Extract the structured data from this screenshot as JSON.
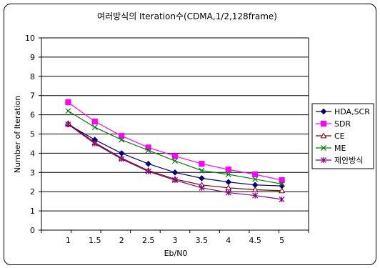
{
  "chart_data": {
    "type": "line",
    "title": "여러방식의 Iteration수(CDMA,1/2,128frame)",
    "xlabel": "Eb/N0",
    "ylabel": "Number of Iteration",
    "x": [
      1,
      1.5,
      2,
      2.5,
      3,
      3.5,
      4,
      4.5,
      5
    ],
    "x_tick_labels": [
      "1",
      "1.5",
      "2",
      "2.5",
      "3",
      "3.5",
      "4",
      "4.5",
      "5"
    ],
    "ylim": [
      0,
      10
    ],
    "y_tick_labels": [
      "0",
      "1",
      "2",
      "3",
      "4",
      "5",
      "6",
      "7",
      "8",
      "9",
      "10"
    ],
    "grid": "horizontal",
    "legend": "right",
    "series": [
      {
        "name": "HDA,SCR",
        "color": "#000080",
        "marker": "diamond",
        "values": [
          5.5,
          4.7,
          4.0,
          3.45,
          3.0,
          2.7,
          2.5,
          2.35,
          2.3
        ]
      },
      {
        "name": "SDR",
        "color": "#ff00ff",
        "marker": "square",
        "values": [
          6.65,
          5.65,
          4.9,
          4.3,
          3.85,
          3.45,
          3.15,
          2.9,
          2.6
        ]
      },
      {
        "name": "CE",
        "color": "#800000",
        "marker": "triangle",
        "values": [
          5.55,
          4.55,
          3.75,
          3.1,
          2.65,
          2.35,
          2.2,
          2.1,
          2.05
        ]
      },
      {
        "name": "ME",
        "color": "#008000",
        "marker": "x",
        "values": [
          6.2,
          5.35,
          4.7,
          4.15,
          3.6,
          3.1,
          2.9,
          2.65,
          2.4
        ]
      },
      {
        "name": "제안방식",
        "color": "#800080",
        "marker": "star",
        "values": [
          5.5,
          4.5,
          3.7,
          3.05,
          2.6,
          2.2,
          1.95,
          1.8,
          1.6
        ]
      }
    ]
  }
}
